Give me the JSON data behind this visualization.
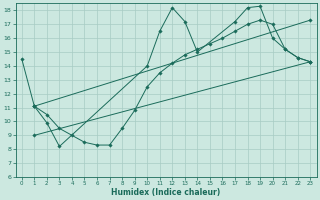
{
  "xlabel": "Humidex (Indice chaleur)",
  "bg_color": "#cce8e0",
  "grid_color": "#a8ccC4",
  "line_color": "#1a6b5a",
  "series1_x": [
    0,
    1,
    2,
    3,
    10,
    11,
    12,
    13,
    14,
    17,
    18,
    19,
    20,
    21,
    22,
    23
  ],
  "series1_y": [
    14.5,
    11.1,
    9.9,
    8.2,
    14.0,
    16.5,
    18.2,
    17.2,
    15.0,
    17.2,
    18.2,
    18.3,
    16.0,
    15.2,
    14.6,
    14.3
  ],
  "series2_x": [
    1,
    2,
    3,
    4,
    5,
    6,
    7,
    8,
    9,
    10,
    11,
    12,
    13,
    14,
    15,
    16,
    17,
    18,
    19,
    20,
    21,
    22,
    23
  ],
  "series2_y": [
    11.1,
    10.5,
    9.5,
    9.0,
    8.5,
    8.3,
    8.3,
    9.5,
    10.8,
    12.5,
    13.5,
    14.2,
    14.8,
    15.2,
    15.6,
    16.0,
    16.5,
    17.0,
    17.3,
    17.0,
    15.2,
    14.6,
    14.3
  ],
  "series3_x": [
    1,
    23
  ],
  "series3_y": [
    9.0,
    14.3
  ],
  "series4_x": [
    1,
    23
  ],
  "series4_y": [
    11.1,
    17.3
  ],
  "xlim": [
    -0.5,
    23.5
  ],
  "ylim": [
    6,
    18.5
  ],
  "yticks": [
    6,
    7,
    8,
    9,
    10,
    11,
    12,
    13,
    14,
    15,
    16,
    17,
    18
  ],
  "xticks": [
    0,
    1,
    2,
    3,
    4,
    5,
    6,
    7,
    8,
    9,
    10,
    11,
    12,
    13,
    14,
    15,
    16,
    17,
    18,
    19,
    20,
    21,
    22,
    23
  ]
}
